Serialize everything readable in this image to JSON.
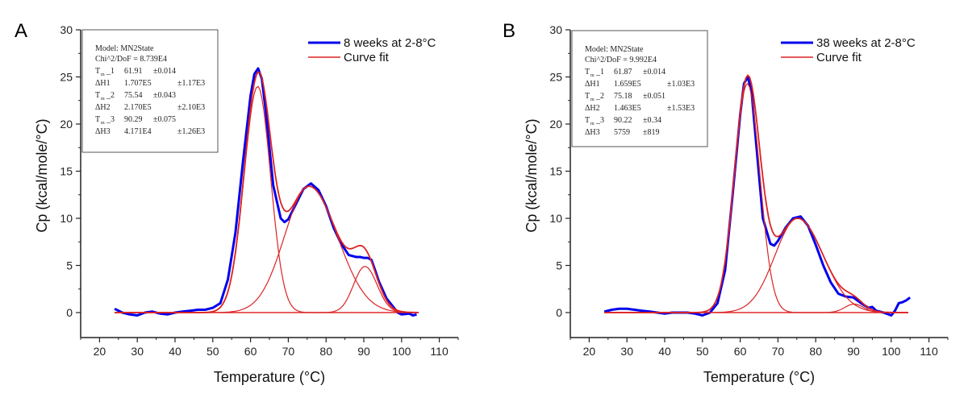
{
  "chart_data": [
    {
      "panel": "A",
      "type": "line",
      "xlabel": "Temperature (°C)",
      "ylabel": "Cp (kcal/mole/°C)",
      "xlim": [
        15,
        115
      ],
      "ylim": [
        -2,
        30
      ],
      "xticks": [
        20,
        30,
        40,
        50,
        60,
        70,
        80,
        90,
        100,
        110
      ],
      "yticks": [
        0,
        5,
        10,
        15,
        20,
        25,
        30
      ],
      "legend": {
        "position": "top-right",
        "entries": [
          {
            "label": "8 weeks at 2-8°C",
            "color": "#0000ee"
          },
          {
            "label": "Curve fit",
            "color": "#dd2222"
          }
        ]
      },
      "fit_box": {
        "model": "Model: MN2State",
        "chi": "Chi^2/DoF = 8.739E4",
        "rows": [
          {
            "name": "T",
            "sub": "m",
            "idx": "1",
            "value": "61.91",
            "err": "±0.014",
            "wide": false
          },
          {
            "name": "ΔH1",
            "sub": "",
            "idx": "",
            "value": "1.707E5",
            "err": "±1.17E3",
            "wide": true
          },
          {
            "name": "T",
            "sub": "m",
            "idx": "2",
            "value": "75.54",
            "err": "±0.043",
            "wide": false
          },
          {
            "name": "ΔH2",
            "sub": "",
            "idx": "",
            "value": "2.170E5",
            "err": "±2.10E3",
            "wide": true
          },
          {
            "name": "T",
            "sub": "m",
            "idx": "3",
            "value": "90.29",
            "err": "±0.075",
            "wide": false
          },
          {
            "name": "ΔH3",
            "sub": "",
            "idx": "",
            "value": "4.171E4",
            "err": "±1.26E3",
            "wide": true
          }
        ]
      },
      "components": [
        {
          "name": "peak1",
          "center": 61.9,
          "height": 24.0,
          "wL": 3.6,
          "wR": 3.4
        },
        {
          "name": "peak2",
          "center": 75.5,
          "height": 13.4,
          "wL": 6.5,
          "wR": 7.5
        },
        {
          "name": "peak3",
          "center": 90.3,
          "height": 4.9,
          "wL": 3.0,
          "wR": 3.2
        }
      ],
      "measured_x": [
        24,
        26,
        28,
        30,
        32,
        34,
        36,
        38,
        40,
        42,
        44,
        46,
        48,
        50,
        52,
        54,
        56,
        58,
        60,
        61,
        62,
        63,
        64,
        66,
        68,
        69,
        70,
        72,
        74,
        76,
        78,
        80,
        82,
        84,
        86,
        88,
        89,
        90,
        91,
        92,
        93,
        94,
        96,
        98,
        99,
        100,
        102,
        103,
        104
      ],
      "measured_y": [
        0.4,
        0.0,
        -0.2,
        -0.3,
        0.0,
        0.1,
        -0.1,
        -0.2,
        0.0,
        0.1,
        0.2,
        0.3,
        0.3,
        0.5,
        1.0,
        3.5,
        8.5,
        16.0,
        23.0,
        25.3,
        25.9,
        24.8,
        21.5,
        13.5,
        10.0,
        9.6,
        9.9,
        11.5,
        13.1,
        13.7,
        13.0,
        11.3,
        9.0,
        7.3,
        6.1,
        5.9,
        5.9,
        5.8,
        5.8,
        5.6,
        4.5,
        3.3,
        1.5,
        0.5,
        0.0,
        -0.2,
        -0.1,
        -0.3,
        -0.2
      ]
    },
    {
      "panel": "B",
      "type": "line",
      "xlabel": "Temperature (°C)",
      "ylabel": "Cp (kcal/mole/°C)",
      "xlim": [
        15,
        115
      ],
      "ylim": [
        -2,
        30
      ],
      "xticks": [
        20,
        30,
        40,
        50,
        60,
        70,
        80,
        90,
        100,
        110
      ],
      "yticks": [
        0,
        5,
        10,
        15,
        20,
        25,
        30
      ],
      "legend": {
        "position": "top-right",
        "entries": [
          {
            "label": "38 weeks at 2-8°C",
            "color": "#0000ee"
          },
          {
            "label": "Curve fit",
            "color": "#dd2222"
          }
        ]
      },
      "fit_box": {
        "model": "Model: MN2State",
        "chi": "Chi^2/DoF = 9.992E4",
        "rows": [
          {
            "name": "T",
            "sub": "m",
            "idx": "1",
            "value": "61.87",
            "err": "±0.014",
            "wide": false
          },
          {
            "name": "ΔH1",
            "sub": "",
            "idx": "",
            "value": "1.659E5",
            "err": "±1.03E3",
            "wide": true
          },
          {
            "name": "T",
            "sub": "m",
            "idx": "2",
            "value": "75.18",
            "err": "±0.051",
            "wide": false
          },
          {
            "name": "ΔH2",
            "sub": "",
            "idx": "",
            "value": "1.463E5",
            "err": "±1.53E3",
            "wide": true
          },
          {
            "name": "T",
            "sub": "m",
            "idx": "3",
            "value": "90.22",
            "err": "±0.34",
            "wide": false
          },
          {
            "name": "ΔH3",
            "sub": "",
            "idx": "",
            "value": "5759",
            "err": "±819",
            "wide": false
          }
        ]
      },
      "components": [
        {
          "name": "peak1",
          "center": 61.9,
          "height": 24.3,
          "wL": 3.4,
          "wR": 3.3
        },
        {
          "name": "peak2",
          "center": 75.2,
          "height": 10.0,
          "wL": 6.0,
          "wR": 6.8
        },
        {
          "name": "peak3",
          "center": 90.2,
          "height": 0.9,
          "wL": 2.5,
          "wR": 2.5
        }
      ],
      "measured_x": [
        24,
        26,
        28,
        30,
        32,
        34,
        36,
        38,
        40,
        42,
        44,
        46,
        48,
        50,
        52,
        54,
        56,
        58,
        60,
        61,
        62,
        63,
        64,
        66,
        68,
        69,
        70,
        72,
        74,
        76,
        78,
        80,
        82,
        84,
        86,
        88,
        90,
        92,
        94,
        95,
        96,
        98,
        100,
        101,
        102,
        103,
        104,
        105
      ],
      "measured_y": [
        0.1,
        0.3,
        0.4,
        0.4,
        0.3,
        0.2,
        0.1,
        0.0,
        -0.1,
        0.0,
        0.0,
        0.0,
        -0.1,
        -0.3,
        0.0,
        1.0,
        4.5,
        12.5,
        21.0,
        24.3,
        25.0,
        23.5,
        19.0,
        10.0,
        7.3,
        7.1,
        7.6,
        9.0,
        10.0,
        10.2,
        9.2,
        7.2,
        5.0,
        3.2,
        2.0,
        1.7,
        1.6,
        1.0,
        0.5,
        0.6,
        0.2,
        0.0,
        -0.3,
        0.2,
        1.0,
        1.1,
        1.3,
        1.6
      ]
    }
  ]
}
